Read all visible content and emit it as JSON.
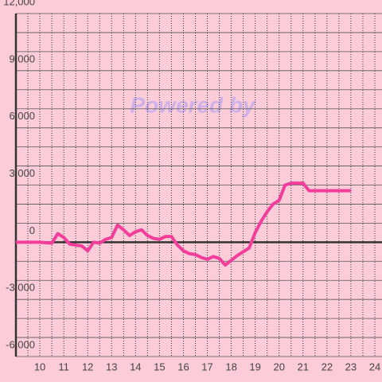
{
  "chart_data": {
    "type": "line",
    "watermark": "Powered by",
    "x": [
      9,
      9.5,
      10,
      10.5,
      10.75,
      11,
      11.25,
      11.5,
      11.75,
      12,
      12.25,
      12.5,
      12.75,
      13,
      13.25,
      13.5,
      13.75,
      14,
      14.25,
      14.5,
      14.75,
      15,
      15.25,
      15.5,
      15.75,
      16,
      16.25,
      16.5,
      16.75,
      17,
      17.25,
      17.5,
      17.75,
      18,
      18.25,
      18.5,
      18.75,
      19,
      19.25,
      19.5,
      19.75,
      20,
      20.25,
      20.5,
      20.75,
      21,
      21.25,
      21.5,
      22,
      22.5,
      23
    ],
    "series": [
      {
        "color": "#f23d9b",
        "values": [
          0,
          0,
          0,
          -50,
          450,
          250,
          -100,
          -150,
          -200,
          -450,
          0,
          -50,
          150,
          250,
          900,
          650,
          350,
          550,
          650,
          350,
          200,
          150,
          300,
          300,
          -150,
          -450,
          -600,
          -650,
          -800,
          -900,
          -750,
          -850,
          -1200,
          -950,
          -700,
          -500,
          -300,
          500,
          1100,
          1600,
          2000,
          2200,
          3000,
          3100,
          3100,
          3100,
          2700,
          2700,
          2700,
          2700,
          2700
        ]
      }
    ],
    "xlim": [
      9,
      24.3
    ],
    "xticks": [
      10,
      11,
      12,
      13,
      14,
      15,
      16,
      17,
      18,
      19,
      20,
      21,
      22,
      23,
      24
    ],
    "xminorticks": [
      9.5,
      10.5,
      11.5,
      12.5,
      13.5,
      14.5,
      15.5,
      16.5,
      17.5,
      18.5,
      19.5,
      20.5,
      21.5,
      22.5,
      23.5
    ],
    "ylim": [
      -6000,
      12000
    ],
    "yticks": [
      {
        "value": 12000,
        "label": "12,000"
      },
      {
        "value": 9000,
        "label": "9,000"
      },
      {
        "value": 6000,
        "label": "6,000"
      },
      {
        "value": 3000,
        "label": "3,000"
      },
      0,
      {
        "value": -3000,
        "label": "-3,000"
      },
      {
        "value": -6000,
        "label": "-6,000"
      }
    ],
    "yminorticks": [
      11000,
      10000,
      8000,
      7000,
      5000,
      4000,
      2000,
      1000,
      -1000,
      -2000,
      -4000,
      -5000
    ],
    "background": "#fdccd9"
  }
}
